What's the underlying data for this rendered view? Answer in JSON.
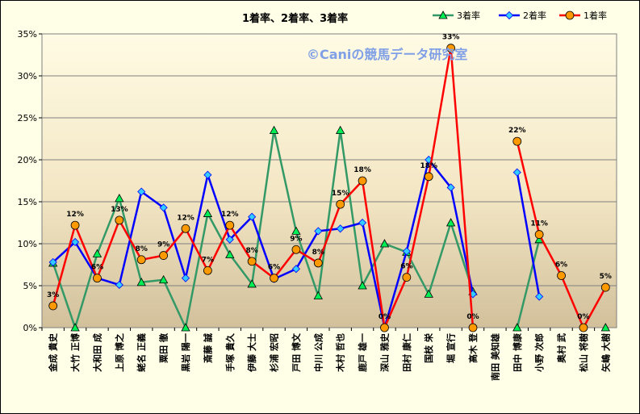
{
  "chart_data": {
    "type": "line",
    "title": "1着率、2着率、3着率",
    "watermark": "©Caniの競馬データ研究室",
    "ylim": [
      0,
      35
    ],
    "yticks": [
      0,
      5,
      10,
      15,
      20,
      25,
      30,
      35
    ],
    "ytick_labels": [
      "0%",
      "5%",
      "10%",
      "15%",
      "20%",
      "25%",
      "30%",
      "35%"
    ],
    "legend_position": "top-right",
    "categories": [
      "金成 貴史",
      "大竹 正博",
      "大和田 成",
      "上原 博之",
      "蛯名 正義",
      "粟田 徹",
      "黒岩 陽一",
      "斎藤 誠",
      "手塚 貴久",
      "伊藤 大士",
      "杉浦 宏昭",
      "戸田 博文",
      "中川 公成",
      "木村 哲也",
      "鹿戸 雄一",
      "深山 雅史",
      "田村 康仁",
      "国枝 栄",
      "堀 宣行",
      "高木 登",
      "南田 美知雄",
      "田中 博康",
      "小野 次郎",
      "奥村 武",
      "松山 将樹",
      "矢嶋 大樹"
    ],
    "series": [
      {
        "name": "3着率",
        "color": "#339966",
        "marker": "triangle",
        "values": [
          7.7,
          0,
          8.8,
          15.4,
          5.4,
          5.7,
          0,
          13.6,
          8.7,
          5.2,
          23.5,
          11.5,
          3.8,
          23.5,
          5.0,
          10.0,
          9.0,
          4.0,
          12.5,
          4.3,
          null,
          0,
          10.5,
          null,
          null,
          0
        ]
      },
      {
        "name": "2着率",
        "color": "#0000ff",
        "marker": "diamond",
        "values": [
          7.8,
          10.2,
          5.9,
          5.1,
          16.2,
          14.3,
          5.9,
          18.2,
          10.5,
          13.2,
          5.8,
          7.0,
          11.5,
          11.8,
          12.5,
          0,
          9.1,
          20.0,
          16.7,
          4.0,
          null,
          18.5,
          3.7,
          null,
          null,
          null
        ]
      },
      {
        "name": "1着率",
        "color": "#ff0000",
        "marker": "circle",
        "values": [
          2.6,
          12.2,
          5.9,
          12.8,
          8.1,
          8.6,
          11.8,
          6.8,
          12.2,
          7.9,
          5.9,
          9.3,
          7.7,
          14.7,
          17.5,
          0,
          6.0,
          18.0,
          33.3,
          0,
          null,
          22.2,
          11.1,
          6.2,
          0,
          4.8
        ]
      }
    ],
    "data_labels": [
      {
        "index": 0,
        "text": "3%"
      },
      {
        "index": 1,
        "text": "12%"
      },
      {
        "index": 2,
        "text": "6%"
      },
      {
        "index": 3,
        "text": "13%"
      },
      {
        "index": 4,
        "text": "8%"
      },
      {
        "index": 5,
        "text": "9%"
      },
      {
        "index": 6,
        "text": "12%"
      },
      {
        "index": 7,
        "text": "7%"
      },
      {
        "index": 8,
        "text": "12%"
      },
      {
        "index": 9,
        "text": "8%"
      },
      {
        "index": 10,
        "text": "6%"
      },
      {
        "index": 11,
        "text": "9%"
      },
      {
        "index": 12,
        "text": "8%"
      },
      {
        "index": 13,
        "text": "15%"
      },
      {
        "index": 14,
        "text": "18%"
      },
      {
        "index": 15,
        "text": "0%"
      },
      {
        "index": 16,
        "text": "6%"
      },
      {
        "index": 17,
        "text": "18%"
      },
      {
        "index": 18,
        "text": "33%"
      },
      {
        "index": 19,
        "text": "0%"
      },
      {
        "index": 21,
        "text": "22%"
      },
      {
        "index": 22,
        "text": "11%"
      },
      {
        "index": 23,
        "text": "6%"
      },
      {
        "index": 24,
        "text": "0%"
      },
      {
        "index": 25,
        "text": "5%"
      }
    ]
  }
}
